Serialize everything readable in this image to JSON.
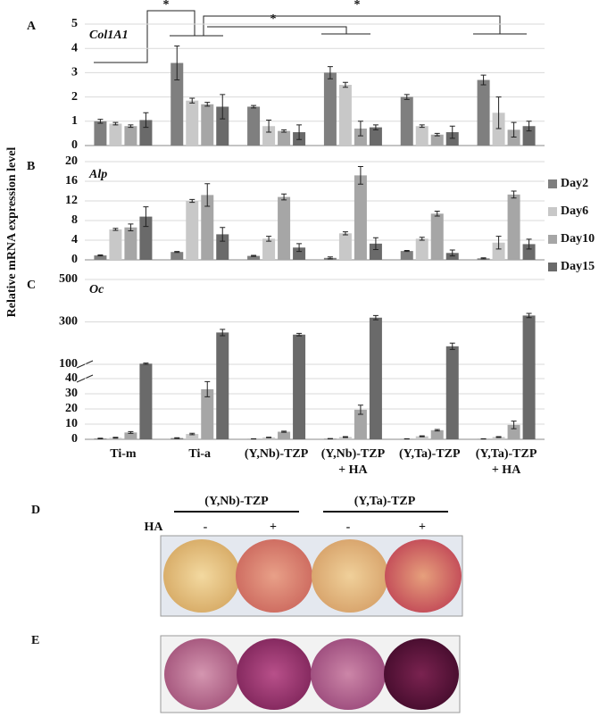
{
  "chart_data": [
    {
      "type": "bar",
      "panel": "A",
      "title": "Col1A1",
      "ylim": [
        0,
        5
      ],
      "yticks": [
        0,
        1,
        2,
        3,
        4,
        5
      ],
      "grid": true,
      "annotations": [
        "*",
        "*",
        "*"
      ],
      "series": [
        {
          "color": "#7f7f7f",
          "values": [
            1.0,
            3.4,
            1.6,
            3.0,
            2.0,
            2.7
          ],
          "errors": [
            0.08,
            0.7,
            0.05,
            0.25,
            0.1,
            0.2
          ]
        },
        {
          "color": "#c8c8c8",
          "values": [
            0.9,
            1.85,
            0.8,
            2.5,
            0.8,
            1.35
          ],
          "errors": [
            0.05,
            0.1,
            0.25,
            0.1,
            0.05,
            0.65
          ]
        },
        {
          "color": "#a6a6a6",
          "values": [
            0.8,
            1.7,
            0.6,
            0.7,
            0.45,
            0.65
          ],
          "errors": [
            0.05,
            0.08,
            0.05,
            0.3,
            0.05,
            0.3
          ]
        },
        {
          "color": "#6a6a6a",
          "values": [
            1.05,
            1.6,
            0.55,
            0.75,
            0.55,
            0.8
          ],
          "errors": [
            0.3,
            0.5,
            0.3,
            0.1,
            0.25,
            0.2
          ]
        }
      ]
    },
    {
      "type": "bar",
      "panel": "B",
      "title": "Alp",
      "ylabel": "Relative mRNA expression level",
      "ylim": [
        0,
        20
      ],
      "yticks": [
        0,
        4,
        8,
        12,
        16,
        20
      ],
      "grid": true,
      "legend": "right",
      "series": [
        {
          "name": "Day2",
          "color": "#7f7f7f",
          "values": [
            0.9,
            1.6,
            0.8,
            0.4,
            1.8,
            0.3
          ],
          "errors": [
            0.1,
            0.1,
            0.1,
            0.2,
            0.1,
            0.1
          ]
        },
        {
          "name": "Day6",
          "color": "#c8c8c8",
          "values": [
            6.2,
            12.0,
            4.3,
            5.4,
            4.3,
            3.5
          ],
          "errors": [
            0.2,
            0.3,
            0.5,
            0.3,
            0.3,
            1.3
          ]
        },
        {
          "name": "Day10",
          "color": "#a6a6a6",
          "values": [
            6.6,
            13.2,
            12.8,
            17.2,
            9.4,
            13.3
          ],
          "errors": [
            0.7,
            2.3,
            0.6,
            1.8,
            0.5,
            0.7
          ]
        },
        {
          "name": "Day15",
          "color": "#6a6a6a",
          "values": [
            8.8,
            5.2,
            2.5,
            3.3,
            1.4,
            3.2
          ],
          "errors": [
            2.0,
            1.4,
            0.8,
            1.2,
            0.6,
            1.0
          ]
        }
      ]
    },
    {
      "type": "bar",
      "panel": "C",
      "title": "Oc",
      "ylim": [
        0,
        500
      ],
      "axis_break": [
        40,
        100
      ],
      "yticks": [
        0,
        10,
        20,
        30,
        40,
        100,
        300,
        500
      ],
      "grid": true,
      "categories": [
        "Ti-m",
        "Ti-a",
        "(Y,Nb)-TZP",
        "(Y,Nb)-TZP\n+ HA",
        "(Y,Ta)-TZP",
        "(Y,Ta)-TZP\n+ HA"
      ],
      "series": [
        {
          "color": "#7f7f7f",
          "values": [
            0.5,
            0.8,
            0.3,
            0.4,
            0.3,
            0.3
          ],
          "errors": [
            0.2,
            0.2,
            0.1,
            0.1,
            0.1,
            0.1
          ]
        },
        {
          "color": "#c8c8c8",
          "values": [
            1.0,
            3.5,
            1.2,
            1.5,
            2.0,
            1.5
          ],
          "errors": [
            0.3,
            0.5,
            0.2,
            0.3,
            0.3,
            0.3
          ]
        },
        {
          "color": "#a6a6a6",
          "values": [
            4.5,
            33,
            5,
            19.5,
            6,
            9.5
          ],
          "errors": [
            0.6,
            5,
            0.4,
            3,
            0.5,
            2.5
          ]
        },
        {
          "color": "#6a6a6a",
          "values": [
            103,
            250,
            240,
            320,
            185,
            330
          ],
          "errors": [
            3,
            15,
            6,
            10,
            15,
            10
          ]
        }
      ]
    }
  ],
  "photos": {
    "D": {
      "letter": "D",
      "groups": [
        "(Y,Nb)-TZP",
        "(Y,Ta)-TZP"
      ],
      "row_label": "HA",
      "signs": [
        "-",
        "+",
        "-",
        "+"
      ]
    },
    "E": {
      "letter": "E"
    }
  }
}
